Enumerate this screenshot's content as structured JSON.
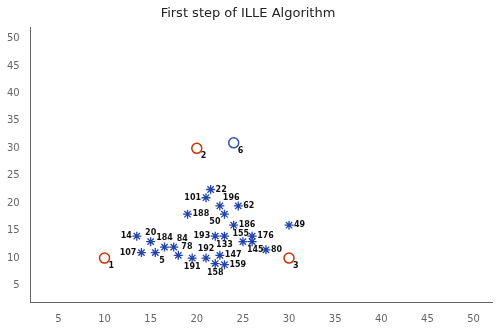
{
  "chart_data": {
    "type": "scatter",
    "title": "First step of ILLE Algorithm",
    "xlim": [
      2,
      52
    ],
    "ylim": [
      2,
      52
    ],
    "xticks": [
      5,
      10,
      15,
      20,
      25,
      30,
      35,
      40,
      45,
      50
    ],
    "yticks": [
      5,
      10,
      15,
      20,
      25,
      30,
      35,
      40,
      45,
      50
    ],
    "grid": false,
    "series": [
      {
        "color": "#2244aa",
        "marker": "star",
        "x": [
          21.0,
          19.0,
          16.5,
          15.0,
          17.5,
          14.0,
          15.5,
          18.0,
          19.5,
          21.0,
          22.5,
          22.0,
          23.0,
          22.5,
          24.5,
          23.0,
          24.0,
          22.0,
          23.0,
          26.0,
          25.0,
          26.0,
          27.5,
          30.0,
          21.5,
          13.5
        ],
        "values": [
          21.0,
          18.0,
          12.0,
          13.0,
          12.0,
          11.0,
          11.0,
          10.5,
          10.0,
          10.0,
          10.5,
          9.0,
          8.8,
          19.5,
          19.5,
          18.0,
          16.0,
          14.0,
          14.0,
          14.0,
          13.0,
          13.0,
          11.5,
          16.0,
          22.5,
          14.0
        ],
        "labels": [
          "101",
          "188",
          "184",
          "20",
          "84",
          "107",
          "5",
          "78",
          "191",
          "192",
          "147",
          "158",
          "159",
          "196",
          "62",
          "50",
          "186",
          "193",
          "133",
          "176",
          "145",
          "155",
          "80",
          "49",
          "22",
          "14"
        ]
      },
      {
        "color": "#cc3300",
        "marker": "circle",
        "x": [
          10,
          20,
          30
        ],
        "values": [
          10,
          30,
          10
        ],
        "labels": [
          "1",
          "2",
          "3"
        ]
      },
      {
        "color": "#3355aa",
        "marker": "circle",
        "x": [
          24
        ],
        "values": [
          31
        ],
        "labels": [
          "6"
        ]
      }
    ]
  }
}
